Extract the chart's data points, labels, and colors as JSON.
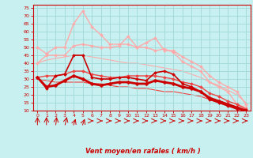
{
  "background_color": "#c8f0f0",
  "grid_color": "#a0d8d8",
  "xlabel": "Vent moyen/en rafales ( km/h )",
  "xlim": [
    -0.5,
    23.5
  ],
  "ylim": [
    10,
    77
  ],
  "yticks": [
    10,
    15,
    20,
    25,
    30,
    35,
    40,
    45,
    50,
    55,
    60,
    65,
    70,
    75
  ],
  "xticks": [
    0,
    1,
    2,
    3,
    4,
    5,
    6,
    7,
    8,
    9,
    10,
    11,
    12,
    13,
    14,
    15,
    16,
    17,
    18,
    19,
    20,
    21,
    22,
    23
  ],
  "series": [
    {
      "x": [
        0,
        1,
        2,
        3,
        4,
        5,
        6,
        7,
        8,
        9,
        10,
        11,
        12,
        13,
        14,
        15,
        16,
        17,
        18,
        19,
        20,
        21,
        22,
        23
      ],
      "y": [
        40,
        45,
        45,
        45,
        51,
        52,
        51,
        50,
        50,
        51,
        57,
        50,
        53,
        56,
        48,
        48,
        44,
        41,
        38,
        32,
        28,
        25,
        22,
        14
      ],
      "color": "#ffaaaa",
      "lw": 1.0,
      "marker": "D",
      "ms": 2.0,
      "zorder": 2
    },
    {
      "x": [
        0,
        1,
        2,
        3,
        4,
        5,
        6,
        7,
        8,
        9,
        10,
        11,
        12,
        13,
        14,
        15,
        16,
        17,
        18,
        19,
        20,
        21,
        22,
        23
      ],
      "y": [
        50,
        46,
        50,
        50,
        65,
        73,
        63,
        58,
        52,
        52,
        52,
        50,
        50,
        48,
        49,
        47,
        41,
        38,
        35,
        28,
        25,
        22,
        14,
        12
      ],
      "color": "#ffaaaa",
      "lw": 1.0,
      "marker": "D",
      "ms": 2.0,
      "zorder": 2
    },
    {
      "x": [
        0,
        1,
        2,
        3,
        4,
        5,
        6,
        7,
        8,
        9,
        10,
        11,
        12,
        13,
        14,
        15,
        16,
        17,
        18,
        19,
        20,
        21,
        22,
        23
      ],
      "y": [
        31,
        24,
        32,
        33,
        45,
        45,
        31,
        30,
        30,
        31,
        31,
        30,
        29,
        34,
        35,
        33,
        27,
        25,
        22,
        17,
        15,
        13,
        11,
        10
      ],
      "color": "#cc0000",
      "lw": 1.2,
      "marker": "D",
      "ms": 2.0,
      "zorder": 3
    },
    {
      "x": [
        0,
        1,
        2,
        3,
        4,
        5,
        6,
        7,
        8,
        9,
        10,
        11,
        12,
        13,
        14,
        15,
        16,
        17,
        18,
        19,
        20,
        21,
        22,
        23
      ],
      "y": [
        31,
        25,
        26,
        29,
        32,
        30,
        27,
        26,
        27,
        28,
        28,
        27,
        27,
        29,
        28,
        27,
        25,
        24,
        22,
        18,
        16,
        14,
        12,
        10
      ],
      "color": "#cc0000",
      "lw": 2.0,
      "marker": "D",
      "ms": 2.5,
      "zorder": 4
    },
    {
      "x": [
        0,
        1,
        2,
        3,
        4,
        5,
        6,
        7,
        8,
        9,
        10,
        11,
        12,
        13,
        14,
        15,
        16,
        17,
        18,
        19,
        20,
        21,
        22,
        23
      ],
      "y": [
        31,
        32,
        32,
        33,
        35,
        35,
        33,
        32,
        31,
        31,
        32,
        32,
        32,
        32,
        31,
        30,
        28,
        27,
        25,
        21,
        19,
        16,
        14,
        11
      ],
      "color": "#ee4444",
      "lw": 1.0,
      "marker": "D",
      "ms": 2.0,
      "zorder": 2
    },
    {
      "x": [
        0,
        1,
        2,
        3,
        4,
        5,
        6,
        7,
        8,
        9,
        10,
        11,
        12,
        13,
        14,
        15,
        16,
        17,
        18,
        19,
        20,
        21,
        22,
        23
      ],
      "y": [
        40,
        42,
        43,
        44,
        45,
        45,
        44,
        43,
        42,
        41,
        40,
        40,
        39,
        38,
        37,
        36,
        35,
        33,
        31,
        28,
        26,
        23,
        20,
        15
      ],
      "color": "#ffaaaa",
      "lw": 0.8,
      "marker": null,
      "ms": 0,
      "zorder": 1
    },
    {
      "x": [
        0,
        1,
        2,
        3,
        4,
        5,
        6,
        7,
        8,
        9,
        10,
        11,
        12,
        13,
        14,
        15,
        16,
        17,
        18,
        19,
        20,
        21,
        22,
        23
      ],
      "y": [
        30,
        29,
        28,
        28,
        28,
        28,
        27,
        27,
        26,
        25,
        25,
        24,
        24,
        23,
        22,
        22,
        21,
        20,
        19,
        17,
        15,
        13,
        12,
        10
      ],
      "color": "#ee4444",
      "lw": 0.8,
      "marker": null,
      "ms": 0,
      "zorder": 1
    }
  ],
  "arrow_color": "#cc0000",
  "spine_color": "#cc0000",
  "tick_color": "#cc0000",
  "label_color": "#cc0000"
}
